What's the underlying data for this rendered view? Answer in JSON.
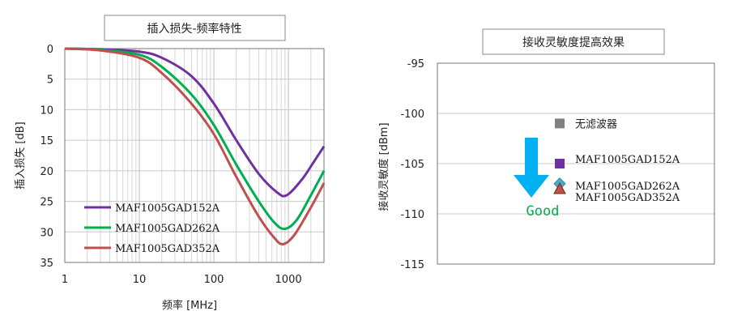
{
  "chart_data": [
    {
      "type": "line",
      "title": "插入损失-频率特性",
      "xlabel": "频率 [MHz]",
      "ylabel": "插入损失 [dB]",
      "x_scale": "log",
      "xlim": [
        1,
        3000
      ],
      "ylim": [
        0,
        35
      ],
      "y_inverted": true,
      "grid": true,
      "x_ticks": [
        "1",
        "10",
        "100",
        "1000"
      ],
      "y_ticks": [
        "0",
        "5",
        "10",
        "15",
        "20",
        "25",
        "30",
        "35"
      ],
      "legend_position": "bottom-left",
      "series": [
        {
          "name": "MAF1005GAD152A",
          "color": "#7030a0",
          "x": [
            1,
            3,
            10,
            20,
            50,
            100,
            200,
            400,
            700,
            950,
            1500,
            2200,
            3000
          ],
          "y": [
            0,
            0.1,
            0.5,
            1.5,
            4.5,
            9,
            15,
            20.5,
            23.5,
            24,
            21.5,
            18.5,
            16
          ]
        },
        {
          "name": "MAF1005GAD262A",
          "color": "#00b050",
          "x": [
            1,
            3,
            10,
            20,
            50,
            100,
            200,
            400,
            650,
            900,
            1300,
            2000,
            3000
          ],
          "y": [
            0,
            0.2,
            1,
            3,
            7.5,
            12.5,
            19,
            25,
            28.5,
            29.5,
            28,
            24,
            20
          ]
        },
        {
          "name": "MAF1005GAD352A",
          "color": "#c0504d",
          "x": [
            1,
            3,
            10,
            20,
            50,
            100,
            200,
            400,
            650,
            850,
            1200,
            2000,
            3000
          ],
          "y": [
            0,
            0.3,
            1.5,
            4,
            9,
            14,
            21,
            27.5,
            31,
            32,
            30.5,
            26,
            22
          ]
        }
      ]
    },
    {
      "type": "scatter",
      "title": "接收灵敏度提高效果",
      "ylabel": "接收灵敏度 [dBm]",
      "ylim": [
        -115,
        -95
      ],
      "y_ticks": [
        "-95",
        "-100",
        "-105",
        "-110",
        "-115"
      ],
      "grid": true,
      "points": [
        {
          "label": "无滤波器",
          "y": -101,
          "color": "#808080",
          "marker": "square"
        },
        {
          "label": "MAF1005GAD152A",
          "y": -105,
          "color": "#7030a0",
          "marker": "square"
        },
        {
          "label": "MAF1005GAD262A",
          "y": -107,
          "color": "#4bacc6",
          "marker": "diamond"
        },
        {
          "label": "MAF1005GAD352A",
          "y": -107.5,
          "color": "#c0504d",
          "marker": "triangle"
        }
      ],
      "annotation": {
        "text": "Good",
        "color": "#00b050",
        "arrow_color": "#00b0f0"
      }
    }
  ]
}
